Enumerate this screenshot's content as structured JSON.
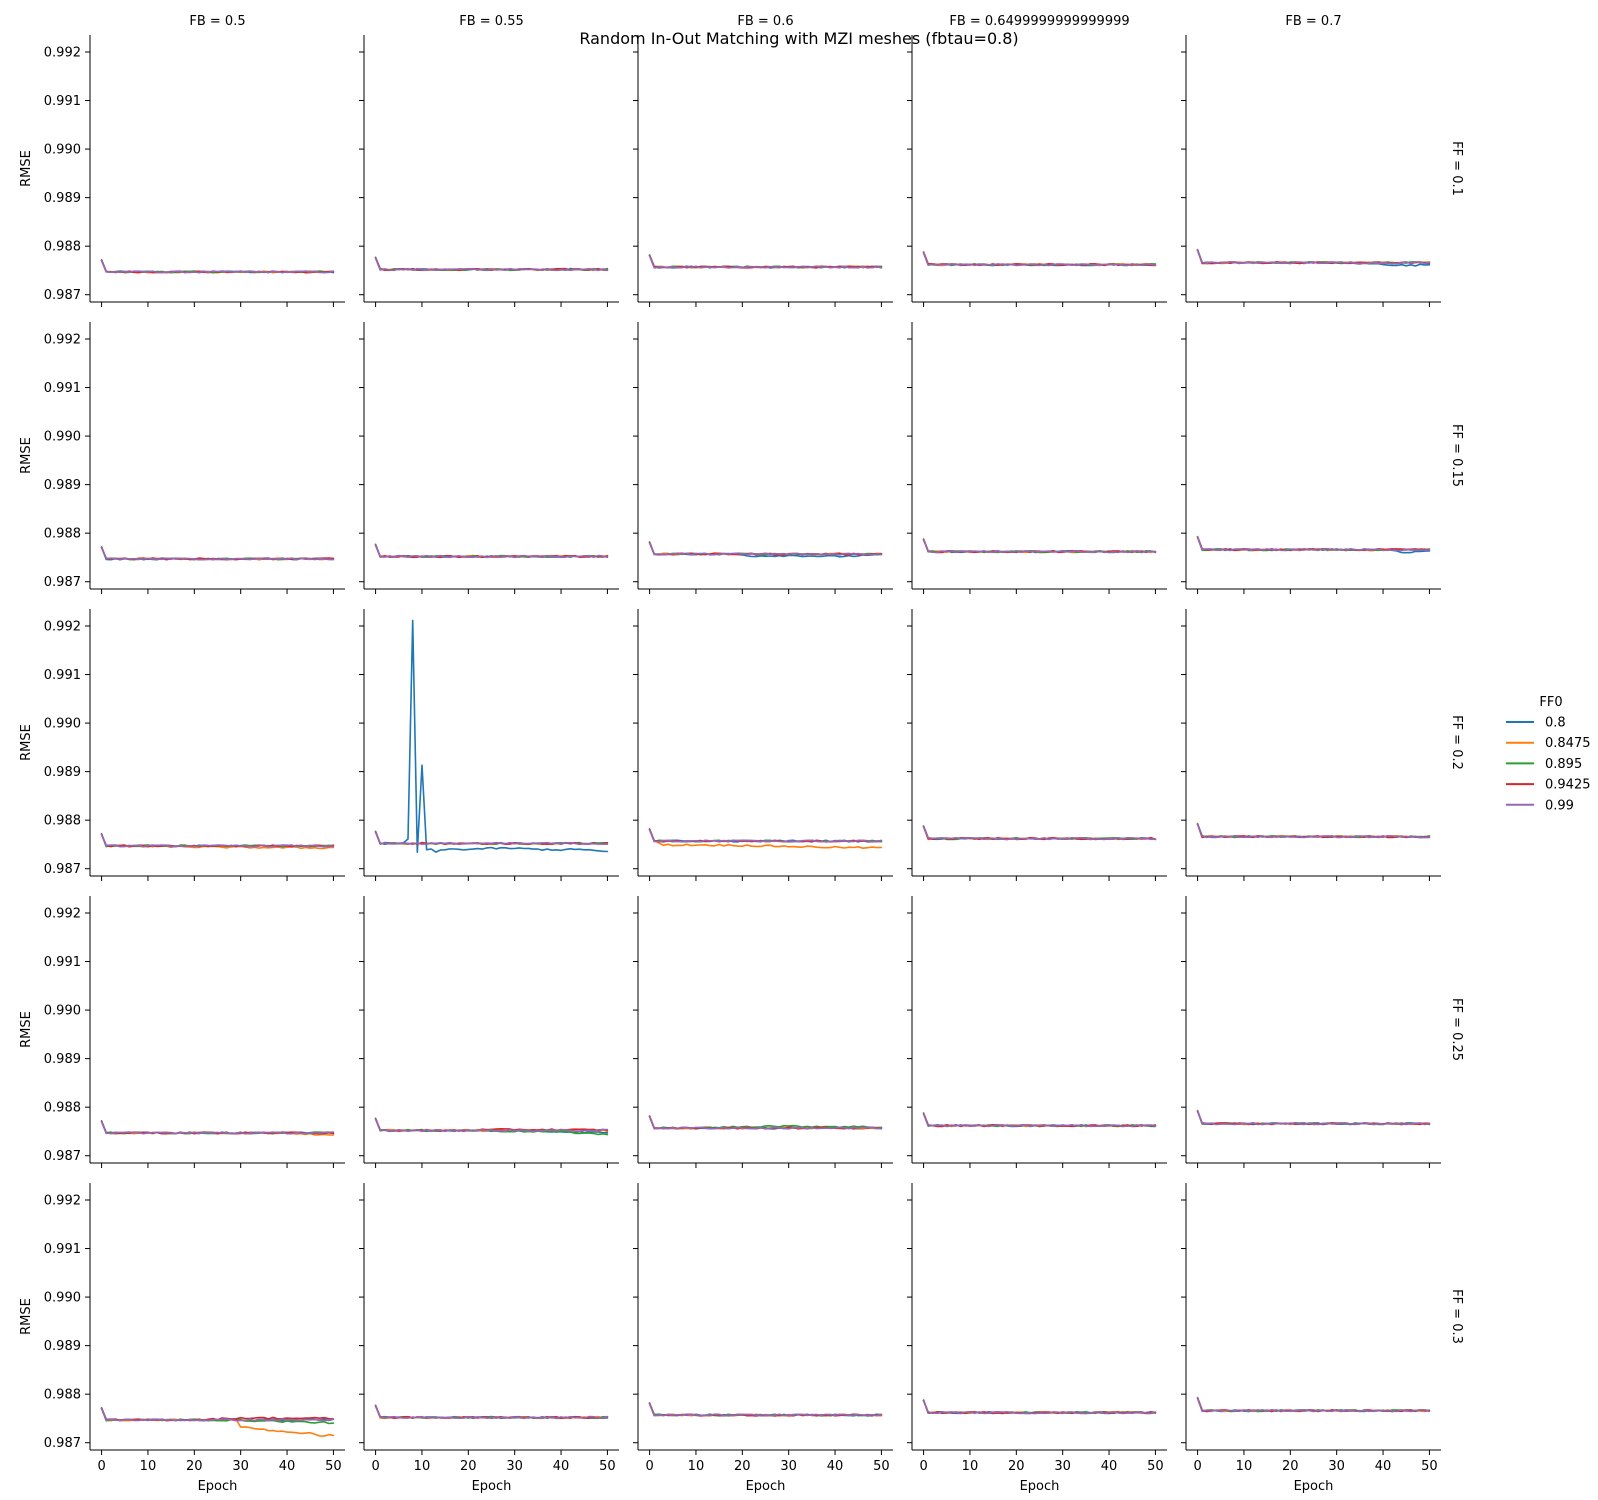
{
  "chart_data": {
    "type": "line",
    "title": "Random In-Out Matching with MZI meshes (fbtau=0.8)",
    "xlabel": "Epoch",
    "ylabel": "RMSE",
    "xlim": [
      -2.5,
      52.5
    ],
    "ylim": [
      0.98685,
      0.99235
    ],
    "xticks": [
      0,
      10,
      20,
      30,
      40,
      50
    ],
    "yticks": [
      0.987,
      0.988,
      0.989,
      0.99,
      0.991,
      0.992
    ],
    "ytick_labels": [
      "0.987",
      "0.988",
      "0.989",
      "0.990",
      "0.991",
      "0.992"
    ],
    "grid": false,
    "legend": {
      "title": "FF0",
      "placement": "right",
      "entries": [
        {
          "label": "0.8",
          "color": "#1f77b4"
        },
        {
          "label": "0.8475",
          "color": "#ff7f0e"
        },
        {
          "label": "0.895",
          "color": "#2ca02c"
        },
        {
          "label": "0.9425",
          "color": "#d62728"
        },
        {
          "label": "0.99",
          "color": "#9467bd"
        }
      ]
    },
    "col_titles": [
      "FB = 0.5",
      "FB = 0.55",
      "FB = 0.6",
      "FB = 0.6499999999999999",
      "FB = 0.7"
    ],
    "row_titles": [
      "FF = 0.1",
      "FF = 0.15",
      "FF = 0.2",
      "FF = 0.25",
      "FF = 0.3"
    ],
    "panels": [
      [
        {
          "start": 0.98772,
          "level": 0.98747,
          "dev": {}
        },
        {
          "start": 0.98777,
          "level": 0.98752,
          "dev": {}
        },
        {
          "start": 0.98782,
          "level": 0.98757,
          "dev": {}
        },
        {
          "start": 0.98788,
          "level": 0.98762,
          "dev": {}
        },
        {
          "start": 0.98793,
          "level": 0.98766,
          "dev": {
            "0.8": [
              [
                30,
                0
              ],
              [
                40,
                -3e-05
              ],
              [
                45,
                -6e-05
              ],
              [
                50,
                -4e-05
              ]
            ]
          }
        }
      ],
      [
        {
          "start": 0.98772,
          "level": 0.98747,
          "dev": {}
        },
        {
          "start": 0.98777,
          "level": 0.98752,
          "dev": {}
        },
        {
          "start": 0.98782,
          "level": 0.98757,
          "dev": {
            "0.8": [
              [
                18,
                0
              ],
              [
                22,
                -4e-05
              ],
              [
                30,
                -3e-05
              ],
              [
                40,
                -5e-05
              ],
              [
                50,
                -2e-05
              ]
            ]
          }
        },
        {
          "start": 0.98788,
          "level": 0.98762,
          "dev": {}
        },
        {
          "start": 0.98793,
          "level": 0.98766,
          "dev": {
            "0.8": [
              [
                40,
                0
              ],
              [
                45,
                -6e-05
              ],
              [
                50,
                -3e-05
              ]
            ]
          }
        }
      ],
      [
        {
          "start": 0.98772,
          "level": 0.98747,
          "dev": {
            "0.8475": [
              [
                0,
                0
              ],
              [
                10,
                -1e-05
              ],
              [
                30,
                -3e-05
              ],
              [
                50,
                -4e-05
              ]
            ]
          }
        },
        {
          "start": 0.98777,
          "level": 0.98752,
          "dev": {
            "0.8": [
              [
                6,
                0
              ],
              [
                7,
                0.0001
              ],
              [
                8,
                0.00458
              ],
              [
                9,
                -0.00018
              ],
              [
                10,
                0.00161
              ],
              [
                11,
                -0.00012
              ],
              [
                12,
                -0.00013
              ],
              [
                13,
                -0.00018
              ],
              [
                15,
                -0.00012
              ],
              [
                20,
                -0.00012
              ],
              [
                25,
                -0.0001
              ],
              [
                30,
                -0.0001
              ],
              [
                35,
                -0.00012
              ],
              [
                40,
                -0.00013
              ],
              [
                45,
                -0.00012
              ],
              [
                50,
                -0.00018
              ]
            ]
          }
        },
        {
          "start": 0.98782,
          "level": 0.98757,
          "dev": {
            "0.8475": [
              [
                1,
                0
              ],
              [
                3,
                -8e-05
              ],
              [
                10,
                -8e-05
              ],
              [
                20,
                -9e-05
              ],
              [
                30,
                -0.00011
              ],
              [
                40,
                -0.00013
              ],
              [
                50,
                -0.00014
              ]
            ]
          }
        },
        {
          "start": 0.98788,
          "level": 0.98762,
          "dev": {}
        },
        {
          "start": 0.98793,
          "level": 0.98766,
          "dev": {}
        }
      ],
      [
        {
          "start": 0.98772,
          "level": 0.98747,
          "dev": {
            "0.8475": [
              [
                40,
                0
              ],
              [
                50,
                -5e-05
              ]
            ]
          }
        },
        {
          "start": 0.98777,
          "level": 0.98752,
          "dev": {
            "0.9425": [
              [
                20,
                1e-05
              ],
              [
                30,
                2e-05
              ],
              [
                50,
                1e-05
              ]
            ],
            "0.895": [
              [
                20,
                0
              ],
              [
                40,
                -3e-05
              ],
              [
                50,
                -8e-05
              ]
            ],
            "0.8": [
              [
                30,
                0
              ],
              [
                50,
                -5e-05
              ]
            ]
          }
        },
        {
          "start": 0.98782,
          "level": 0.98757,
          "dev": {
            "0.895": [
              [
                10,
                0
              ],
              [
                25,
                4e-05
              ],
              [
                40,
                3e-05
              ],
              [
                50,
                2e-05
              ]
            ]
          }
        },
        {
          "start": 0.98788,
          "level": 0.98762,
          "dev": {}
        },
        {
          "start": 0.98793,
          "level": 0.98766,
          "dev": {}
        }
      ],
      [
        {
          "start": 0.98772,
          "level": 0.98747,
          "dev": {
            "0.8475": [
              [
                29,
                0
              ],
              [
                30,
                -0.00014
              ],
              [
                35,
                -0.0002
              ],
              [
                40,
                -0.00024
              ],
              [
                45,
                -0.00028
              ],
              [
                48,
                -0.00034
              ],
              [
                49,
                -0.0003
              ],
              [
                50,
                -0.00031
              ]
            ],
            "0.9425": [
              [
                20,
                0
              ],
              [
                30,
                4e-05
              ],
              [
                50,
                3e-05
              ]
            ],
            "0.895": [
              [
                25,
                0
              ],
              [
                35,
                -2e-05
              ],
              [
                50,
                -6e-05
              ]
            ]
          }
        },
        {
          "start": 0.98777,
          "level": 0.98752,
          "dev": {}
        },
        {
          "start": 0.98782,
          "level": 0.98757,
          "dev": {}
        },
        {
          "start": 0.98788,
          "level": 0.98762,
          "dev": {}
        },
        {
          "start": 0.98793,
          "level": 0.98766,
          "dev": {}
        }
      ]
    ]
  }
}
